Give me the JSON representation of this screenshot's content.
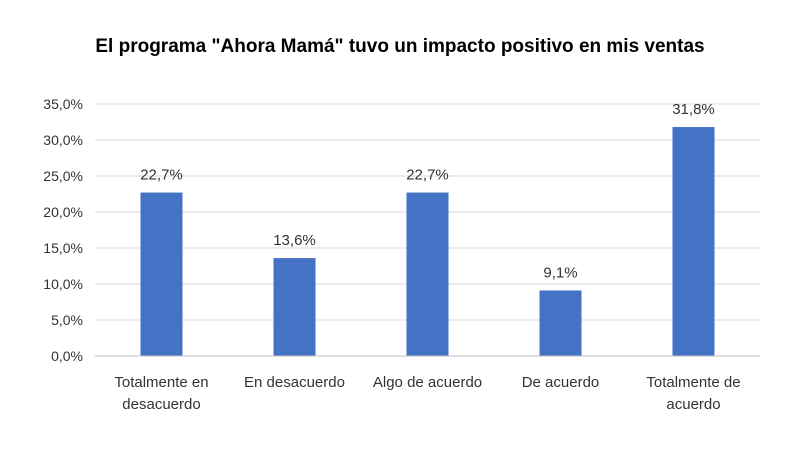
{
  "chart_data": {
    "type": "bar",
    "title": "El programa \"Ahora Mamá\" tuvo un impacto positivo en mis ventas",
    "categories": [
      [
        "Totalmente en",
        "desacuerdo"
      ],
      [
        "En desacuerdo"
      ],
      [
        "Algo de acuerdo"
      ],
      [
        "De acuerdo"
      ],
      [
        "Totalmente de",
        "acuerdo"
      ]
    ],
    "values": [
      22.7,
      13.6,
      22.7,
      9.1,
      31.8
    ],
    "data_labels": [
      "22,7%",
      "13,6%",
      "22,7%",
      "9,1%",
      "31,8%"
    ],
    "yticks": [
      "0,0%",
      "5,0%",
      "10,0%",
      "15,0%",
      "20,0%",
      "25,0%",
      "30,0%",
      "35,0%"
    ],
    "ylim": [
      0,
      35
    ],
    "grid": true,
    "bar_color": "#4472C4",
    "grid_color": "#d9d9d9"
  }
}
